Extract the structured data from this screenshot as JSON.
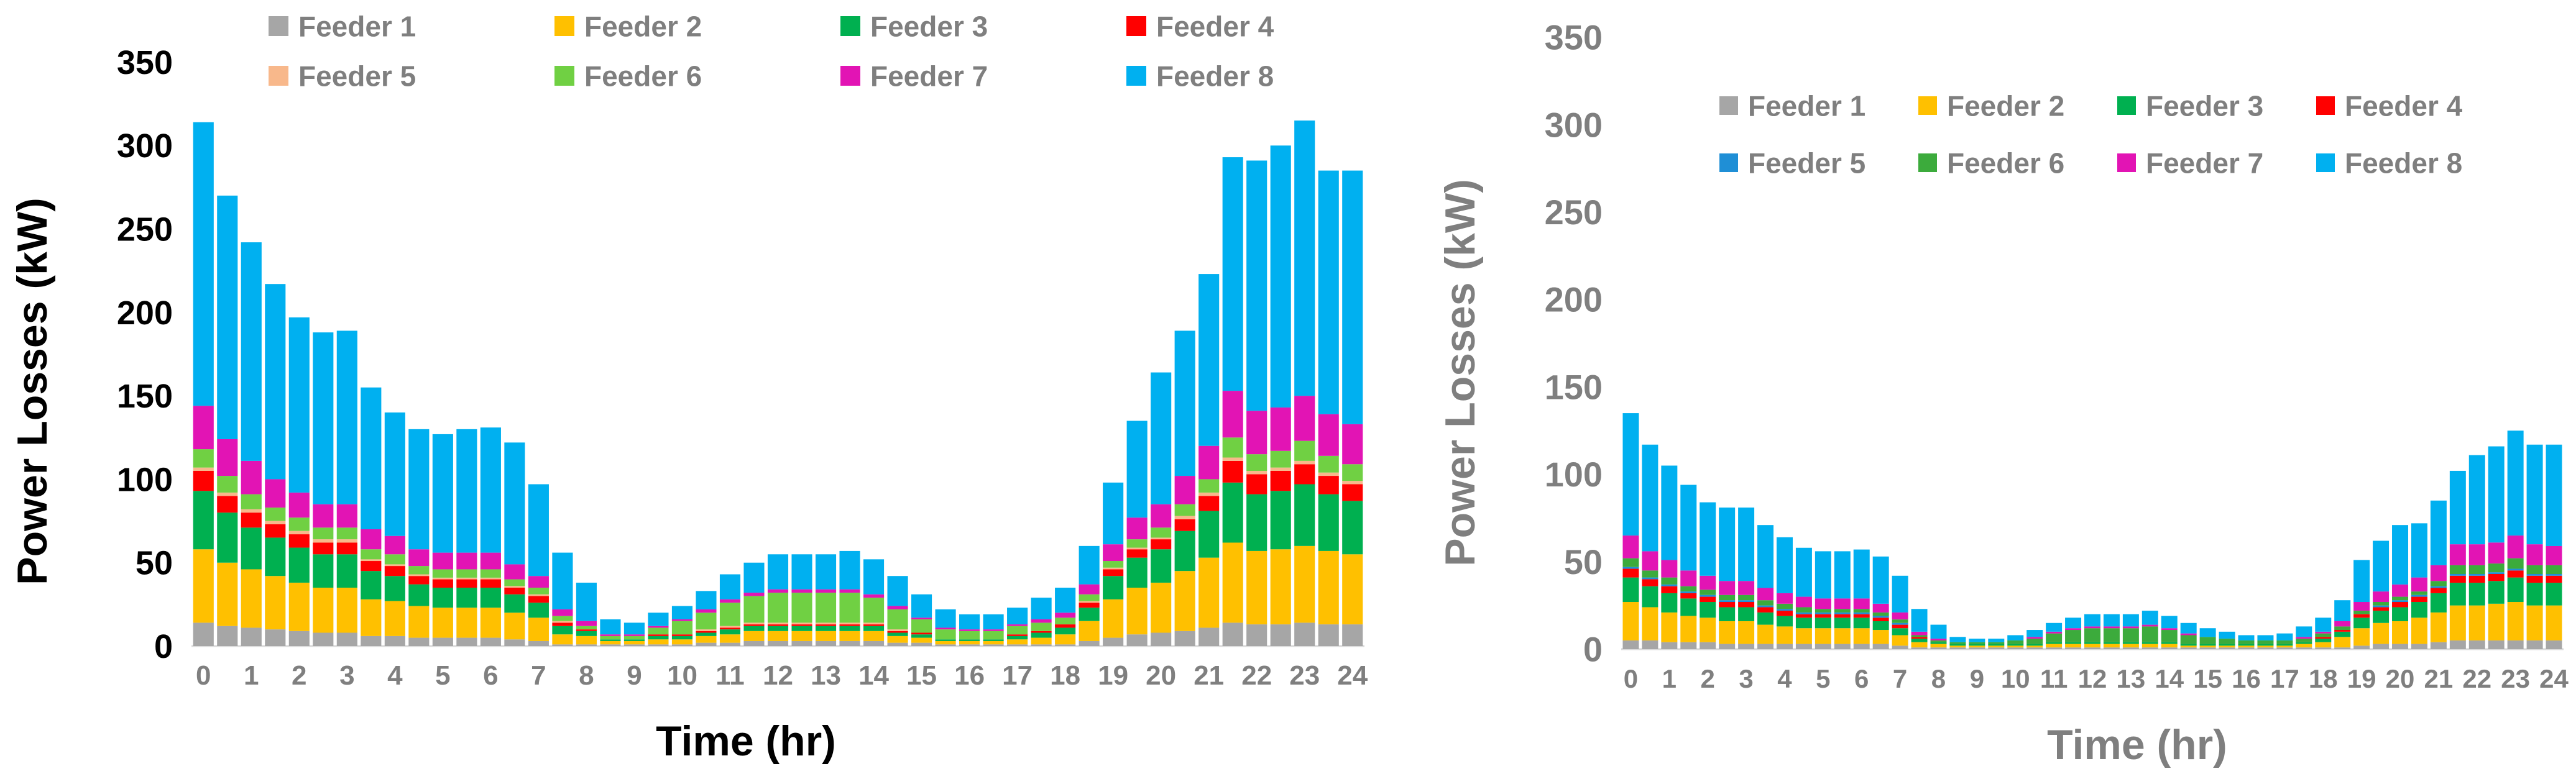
{
  "chart_data": [
    {
      "type": "bar",
      "stacked": true,
      "xlabel": "Time (hr)",
      "ylabel": "Power Losses (kW)",
      "ylim": [
        0,
        350
      ],
      "yticks": [
        0,
        50,
        100,
        150,
        200,
        250,
        300,
        350
      ],
      "xticks": [
        "0",
        "1",
        "2",
        "3",
        "4",
        "5",
        "6",
        "7",
        "8",
        "9",
        "10",
        "11",
        "12",
        "13",
        "14",
        "15",
        "16",
        "17",
        "18",
        "19",
        "20",
        "21",
        "22",
        "23",
        "24"
      ],
      "categories": [
        "0",
        "0.5",
        "1",
        "1.5",
        "2",
        "2.5",
        "3",
        "3.5",
        "4",
        "4.5",
        "5",
        "5.5",
        "6",
        "6.5",
        "7",
        "7.5",
        "8",
        "8.5",
        "9",
        "9.5",
        "10",
        "10.5",
        "11",
        "11.5",
        "12",
        "12.5",
        "13",
        "13.5",
        "14",
        "14.5",
        "15",
        "15.5",
        "16",
        "16.5",
        "17",
        "17.5",
        "18",
        "18.5",
        "19",
        "19.5",
        "20",
        "20.5",
        "21",
        "21.5",
        "22",
        "22.5",
        "23",
        "23.5",
        "24"
      ],
      "legend_position": "top",
      "series": [
        {
          "name": "Feeder 1",
          "color": "#a6a6a6",
          "values": [
            14,
            12,
            11,
            10,
            9,
            8,
            8,
            6,
            6,
            5,
            5,
            5,
            5,
            4,
            3,
            1,
            1,
            1,
            1,
            1,
            1,
            2,
            2,
            3,
            3,
            3,
            3,
            3,
            3,
            2,
            2,
            1,
            1,
            1,
            1,
            1,
            1,
            3,
            5,
            7,
            8,
            9,
            11,
            14,
            13,
            13,
            14,
            13,
            13
          ]
        },
        {
          "name": "Feeder 2",
          "color": "#ffc000",
          "values": [
            44,
            38,
            35,
            32,
            29,
            27,
            27,
            22,
            21,
            19,
            18,
            18,
            18,
            16,
            14,
            6,
            5,
            2,
            2,
            3,
            3,
            4,
            5,
            6,
            6,
            6,
            6,
            6,
            6,
            4,
            3,
            2,
            2,
            2,
            3,
            4,
            6,
            12,
            23,
            28,
            30,
            36,
            42,
            48,
            44,
            45,
            46,
            44,
            42
          ]
        },
        {
          "name": "Feeder 3",
          "color": "#00b050",
          "values": [
            35,
            30,
            25,
            23,
            21,
            20,
            20,
            17,
            15,
            13,
            12,
            12,
            12,
            11,
            9,
            5,
            3,
            1,
            1,
            2,
            2,
            2,
            3,
            3,
            3,
            3,
            3,
            3,
            3,
            2,
            2,
            1,
            1,
            1,
            2,
            3,
            4,
            8,
            14,
            18,
            20,
            24,
            28,
            36,
            34,
            35,
            37,
            34,
            32
          ]
        },
        {
          "name": "Feeder 4",
          "color": "#ff0000",
          "values": [
            12,
            10,
            9,
            8,
            8,
            7,
            7,
            6,
            6,
            5,
            5,
            5,
            5,
            4,
            4,
            2,
            1,
            0,
            0,
            1,
            1,
            1,
            1,
            1,
            1,
            1,
            1,
            1,
            1,
            1,
            1,
            0,
            0,
            0,
            1,
            1,
            2,
            3,
            4,
            5,
            6,
            7,
            9,
            13,
            12,
            12,
            12,
            11,
            10
          ]
        },
        {
          "name": "Feeder 5",
          "color": "#f8b88b",
          "values": [
            2,
            2,
            2,
            2,
            2,
            2,
            2,
            1,
            1,
            1,
            1,
            1,
            1,
            1,
            1,
            1,
            0,
            0,
            0,
            0,
            0,
            1,
            1,
            1,
            1,
            1,
            1,
            1,
            1,
            1,
            0,
            0,
            0,
            0,
            0,
            0,
            0,
            1,
            1,
            1,
            1,
            2,
            2,
            2,
            2,
            2,
            2,
            2,
            2
          ]
        },
        {
          "name": "Feeder 6",
          "color": "#70d043",
          "values": [
            11,
            10,
            9,
            8,
            8,
            7,
            7,
            6,
            6,
            5,
            5,
            5,
            5,
            4,
            4,
            3,
            2,
            2,
            2,
            4,
            8,
            10,
            14,
            16,
            18,
            18,
            18,
            18,
            15,
            12,
            8,
            6,
            5,
            5,
            5,
            5,
            4,
            4,
            4,
            5,
            6,
            7,
            8,
            12,
            10,
            10,
            12,
            10,
            10
          ]
        },
        {
          "name": "Feeder 7",
          "color": "#e214b4",
          "values": [
            26,
            22,
            20,
            17,
            15,
            14,
            14,
            12,
            11,
            10,
            10,
            10,
            10,
            9,
            7,
            4,
            3,
            1,
            1,
            1,
            1,
            2,
            2,
            2,
            2,
            2,
            2,
            2,
            2,
            2,
            1,
            1,
            1,
            1,
            1,
            2,
            3,
            6,
            10,
            13,
            14,
            17,
            20,
            28,
            26,
            26,
            27,
            25,
            24
          ]
        },
        {
          "name": "Feeder 8",
          "color": "#00b0f0",
          "values": [
            170,
            146,
            131,
            117,
            105,
            103,
            104,
            85,
            74,
            72,
            71,
            74,
            75,
            73,
            55,
            34,
            23,
            9,
            7,
            8,
            8,
            11,
            15,
            18,
            21,
            21,
            21,
            23,
            21,
            18,
            14,
            11,
            9,
            9,
            10,
            13,
            15,
            23,
            37,
            58,
            79,
            87,
            103,
            140,
            150,
            157,
            165,
            146,
            152
          ]
        }
      ]
    },
    {
      "type": "bar",
      "stacked": true,
      "xlabel": "Time (hr)",
      "ylabel": "Power Losses (kW)",
      "ylim": [
        0,
        350
      ],
      "yticks": [
        0,
        50,
        100,
        150,
        200,
        250,
        300,
        350
      ],
      "xticks": [
        "0",
        "1",
        "2",
        "3",
        "4",
        "5",
        "6",
        "7",
        "8",
        "9",
        "10",
        "11",
        "12",
        "13",
        "14",
        "15",
        "16",
        "17",
        "18",
        "19",
        "20",
        "21",
        "22",
        "23",
        "24"
      ],
      "categories": [
        "0",
        "0.5",
        "1",
        "1.5",
        "2",
        "2.5",
        "3",
        "3.5",
        "4",
        "4.5",
        "5",
        "5.5",
        "6",
        "6.5",
        "7",
        "7.5",
        "8",
        "8.5",
        "9",
        "9.5",
        "10",
        "10.5",
        "11",
        "11.5",
        "12",
        "12.5",
        "13",
        "13.5",
        "14",
        "14.5",
        "15",
        "15.5",
        "16",
        "16.5",
        "17",
        "17.5",
        "18",
        "18.5",
        "19",
        "19.5",
        "20",
        "20.5",
        "21",
        "21.5",
        "22",
        "22.5",
        "23",
        "23.5",
        "24"
      ],
      "legend_position": "top-right",
      "series": [
        {
          "name": "Feeder 1",
          "color": "#a6a6a6",
          "values": [
            5,
            5,
            4,
            4,
            4,
            3,
            3,
            3,
            3,
            3,
            3,
            3,
            3,
            3,
            2,
            1,
            1,
            1,
            1,
            1,
            1,
            1,
            1,
            1,
            1,
            1,
            1,
            1,
            1,
            1,
            1,
            1,
            1,
            1,
            1,
            1,
            1,
            1,
            2,
            3,
            3,
            3,
            4,
            5,
            5,
            5,
            5,
            5,
            5
          ]
        },
        {
          "name": "Feeder 2",
          "color": "#ffc000",
          "values": [
            22,
            19,
            17,
            15,
            14,
            13,
            13,
            11,
            10,
            9,
            9,
            9,
            9,
            8,
            6,
            3,
            2,
            1,
            1,
            1,
            1,
            1,
            2,
            2,
            2,
            2,
            2,
            2,
            2,
            1,
            1,
            1,
            1,
            1,
            1,
            2,
            3,
            6,
            10,
            12,
            13,
            15,
            17,
            20,
            20,
            21,
            22,
            20,
            20
          ]
        },
        {
          "name": "Feeder 3",
          "color": "#00b050",
          "values": [
            14,
            12,
            11,
            10,
            9,
            8,
            8,
            7,
            6,
            6,
            6,
            6,
            6,
            5,
            4,
            2,
            1,
            1,
            1,
            1,
            1,
            1,
            1,
            1,
            1,
            1,
            1,
            1,
            1,
            1,
            1,
            1,
            1,
            1,
            1,
            1,
            2,
            3,
            6,
            7,
            8,
            9,
            11,
            13,
            13,
            13,
            14,
            13,
            13
          ]
        },
        {
          "name": "Feeder 4",
          "color": "#ff0000",
          "values": [
            5,
            4,
            4,
            3,
            3,
            3,
            3,
            3,
            3,
            2,
            2,
            2,
            2,
            2,
            2,
            1,
            0,
            0,
            0,
            0,
            0,
            0,
            0,
            0,
            0,
            0,
            0,
            0,
            0,
            0,
            0,
            0,
            0,
            0,
            0,
            0,
            1,
            1,
            2,
            2,
            3,
            3,
            3,
            4,
            4,
            4,
            4,
            4,
            4
          ]
        },
        {
          "name": "Feeder 5",
          "color": "#1f8fd6",
          "values": [
            1,
            1,
            1,
            1,
            1,
            1,
            1,
            1,
            1,
            1,
            1,
            1,
            1,
            1,
            1,
            0,
            0,
            0,
            0,
            0,
            0,
            0,
            0,
            0,
            0,
            0,
            0,
            0,
            0,
            0,
            0,
            0,
            0,
            0,
            0,
            0,
            0,
            0,
            0,
            1,
            1,
            1,
            1,
            1,
            1,
            1,
            1,
            1,
            1
          ]
        },
        {
          "name": "Feeder 6",
          "color": "#3cab3c",
          "values": [
            5,
            4,
            4,
            3,
            3,
            3,
            3,
            3,
            3,
            3,
            2,
            2,
            2,
            2,
            2,
            1,
            1,
            1,
            1,
            1,
            2,
            3,
            5,
            7,
            8,
            8,
            8,
            9,
            7,
            5,
            4,
            3,
            2,
            2,
            2,
            2,
            2,
            2,
            2,
            2,
            2,
            2,
            3,
            5,
            5,
            5,
            6,
            5,
            5
          ]
        },
        {
          "name": "Feeder 7",
          "color": "#e214b4",
          "values": [
            13,
            11,
            10,
            9,
            8,
            8,
            8,
            7,
            6,
            6,
            6,
            6,
            6,
            5,
            4,
            2,
            1,
            0,
            0,
            0,
            0,
            1,
            1,
            1,
            1,
            1,
            1,
            1,
            1,
            1,
            0,
            0,
            0,
            0,
            0,
            1,
            1,
            3,
            5,
            6,
            7,
            8,
            9,
            12,
            12,
            12,
            13,
            12,
            11
          ]
        },
        {
          "name": "Feeder 8",
          "color": "#00b0f0",
          "values": [
            70,
            61,
            54,
            49,
            42,
            42,
            42,
            36,
            32,
            28,
            27,
            27,
            28,
            27,
            21,
            13,
            8,
            3,
            2,
            2,
            3,
            4,
            5,
            6,
            7,
            7,
            7,
            8,
            7,
            6,
            5,
            4,
            3,
            3,
            4,
            6,
            8,
            12,
            24,
            29,
            34,
            31,
            37,
            42,
            51,
            55,
            60,
            57,
            58
          ]
        }
      ]
    }
  ]
}
